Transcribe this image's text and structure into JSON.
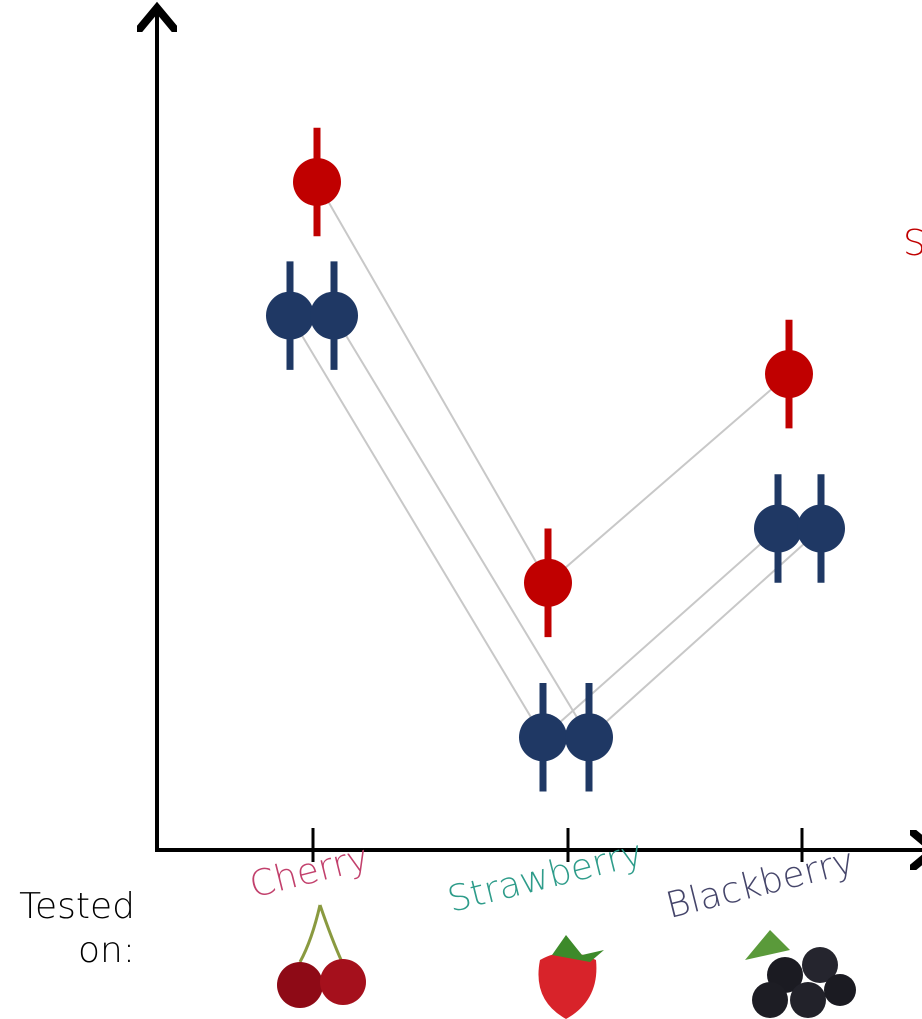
{
  "chart_data": {
    "type": "dot",
    "categories": [
      "Cherry",
      "Strawberry",
      "Blackberry"
    ],
    "category_colors": [
      "#c2406c",
      "#2e9c8a",
      "#45456a"
    ],
    "x_label": "Tested\non:",
    "annotation": "S",
    "annotation_color": "#c00000",
    "line_color": "#c8c8c8",
    "ylim": [
      0,
      100
    ],
    "series": [
      {
        "color": "#c00000",
        "values": [
          80,
          32,
          57
        ],
        "errors": [
          6.5,
          6.5,
          6.5
        ]
      },
      {
        "color": "#1f3864",
        "values": [
          64,
          13.5,
          38.5
        ],
        "errors": [
          6.5,
          6.5,
          6.5
        ]
      },
      {
        "color": "#1f3864",
        "values": [
          64,
          13.5,
          38.5
        ],
        "errors": [
          6.5,
          6.5,
          6.5
        ]
      }
    ]
  }
}
